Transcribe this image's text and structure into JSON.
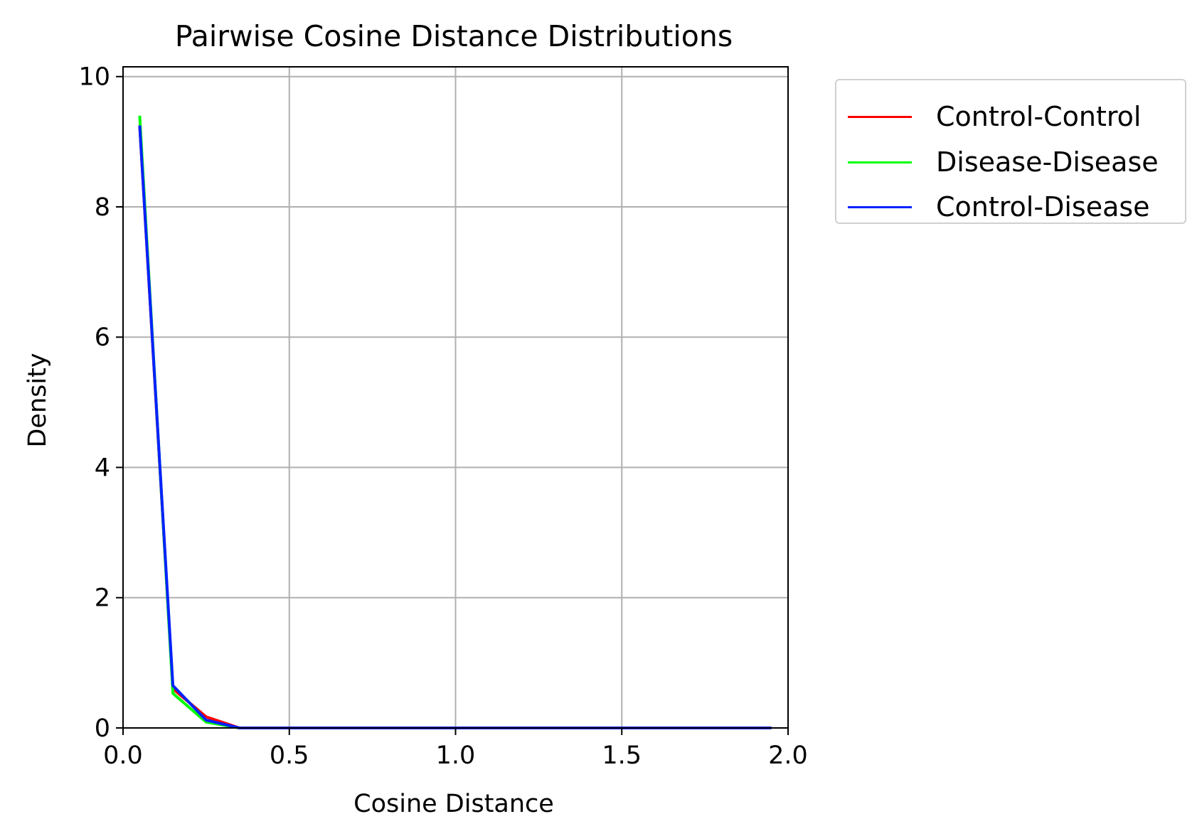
{
  "chart_data": {
    "type": "line",
    "title": "Pairwise Cosine Distance Distributions",
    "xlabel": "Cosine Distance",
    "ylabel": "Density",
    "xlim": [
      0.0,
      2.0
    ],
    "ylim": [
      0,
      10.15
    ],
    "xticks": [
      "0.0",
      "0.5",
      "1.0",
      "1.5",
      "2.0"
    ],
    "yticks": [
      "0",
      "2",
      "4",
      "6",
      "8",
      "10"
    ],
    "grid": true,
    "legend_position": "outside-right-top",
    "x": [
      0.05,
      0.15,
      0.25,
      0.35,
      0.45,
      0.55,
      0.65,
      0.75,
      0.85,
      0.95,
      1.05,
      1.15,
      1.25,
      1.35,
      1.45,
      1.55,
      1.65,
      1.75,
      1.85,
      1.95
    ],
    "series": [
      {
        "name": "Control-Control",
        "color": "#ff0000",
        "values": [
          9.25,
          0.6,
          0.17,
          0,
          0,
          0,
          0,
          0,
          0,
          0,
          0,
          0,
          0,
          0,
          0,
          0,
          0,
          0,
          0,
          0
        ]
      },
      {
        "name": "Disease-Disease",
        "color": "#00ff00",
        "values": [
          9.4,
          0.53,
          0.09,
          0,
          0,
          0,
          0,
          0,
          0,
          0,
          0,
          0,
          0,
          0,
          0,
          0,
          0,
          0,
          0,
          0
        ]
      },
      {
        "name": "Control-Disease",
        "color": "#0022ff",
        "values": [
          9.25,
          0.65,
          0.12,
          0,
          0,
          0,
          0,
          0,
          0,
          0,
          0,
          0,
          0,
          0,
          0,
          0,
          0,
          0,
          0,
          0
        ]
      }
    ]
  }
}
